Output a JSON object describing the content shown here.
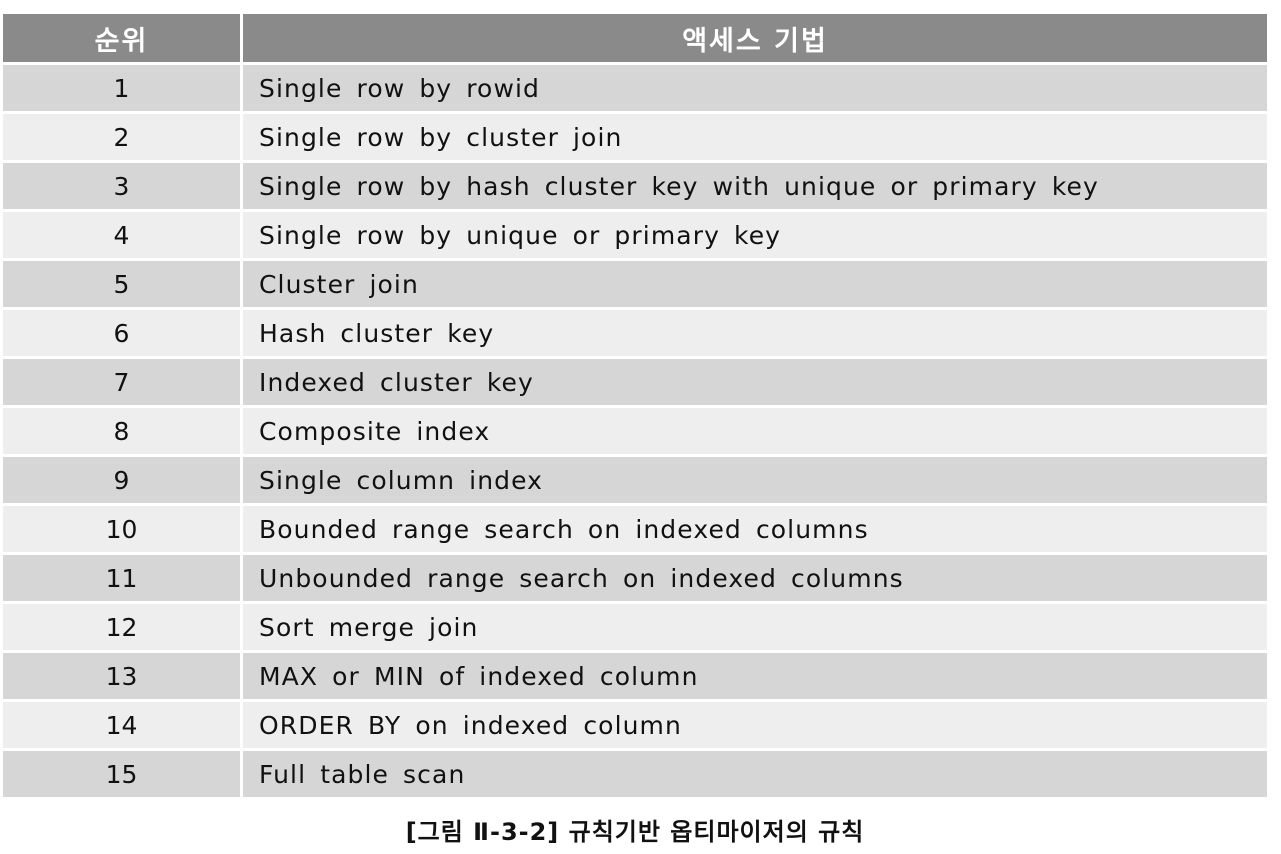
{
  "table": {
    "headers": {
      "rank": "순위",
      "method": "액세스 기법"
    },
    "rows": [
      {
        "rank": "1",
        "method": "Single row by rowid"
      },
      {
        "rank": "2",
        "method": "Single row by cluster join"
      },
      {
        "rank": "3",
        "method": "Single row by hash cluster key with unique or primary key"
      },
      {
        "rank": "4",
        "method": "Single row by unique or primary key"
      },
      {
        "rank": "5",
        "method": "Cluster join"
      },
      {
        "rank": "6",
        "method": "Hash cluster key"
      },
      {
        "rank": "7",
        "method": "Indexed cluster key"
      },
      {
        "rank": "8",
        "method": "Composite index"
      },
      {
        "rank": "9",
        "method": "Single column index"
      },
      {
        "rank": "10",
        "method": "Bounded range search on indexed columns"
      },
      {
        "rank": "11",
        "method": "Unbounded range search on indexed columns"
      },
      {
        "rank": "12",
        "method": "Sort merge join"
      },
      {
        "rank": "13",
        "method": "MAX or MIN of indexed column"
      },
      {
        "rank": "14",
        "method": "ORDER BY on indexed column"
      },
      {
        "rank": "15",
        "method": "Full table scan"
      }
    ]
  },
  "caption": "[그림 Ⅱ-3-2] 규칙기반 옵티마이저의 규칙",
  "colors": {
    "header_bg": "#8a8a8a",
    "header_text": "#ffffff",
    "row_dark": "#d6d6d6",
    "row_light": "#eeeeee"
  }
}
